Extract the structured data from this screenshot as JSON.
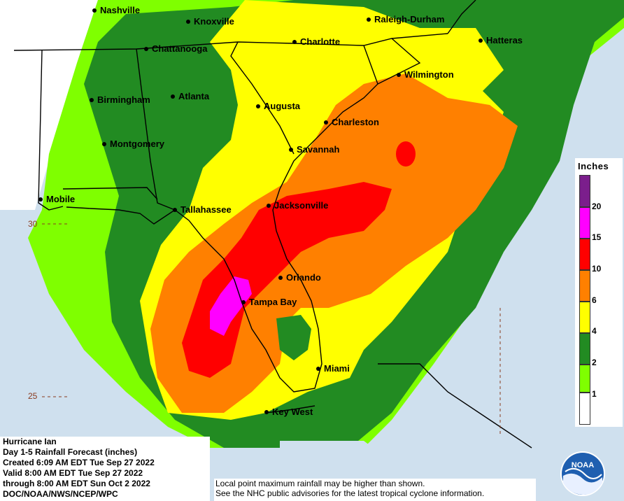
{
  "cities": [
    {
      "id": "nashville",
      "name": "Nashville"
    },
    {
      "id": "knoxville",
      "name": "Knoxville"
    },
    {
      "id": "raleigh",
      "name": "Raleigh-Durham"
    },
    {
      "id": "hatteras",
      "name": "Hatteras"
    },
    {
      "id": "chattanooga",
      "name": "Chattanooga"
    },
    {
      "id": "charlotte",
      "name": "Charlotte"
    },
    {
      "id": "wilmington",
      "name": "Wilmington"
    },
    {
      "id": "birmingham",
      "name": "Birmingham"
    },
    {
      "id": "atlanta",
      "name": "Atlanta"
    },
    {
      "id": "augusta",
      "name": "Augusta"
    },
    {
      "id": "charleston",
      "name": "Charleston"
    },
    {
      "id": "montgomery",
      "name": "Montgomery"
    },
    {
      "id": "savannah",
      "name": "Savannah"
    },
    {
      "id": "mobile",
      "name": "Mobile"
    },
    {
      "id": "tallahassee",
      "name": "Tallahassee"
    },
    {
      "id": "jacksonville",
      "name": "Jacksonville"
    },
    {
      "id": "orlando",
      "name": "Orlando"
    },
    {
      "id": "tampa",
      "name": "Tampa Bay"
    },
    {
      "id": "miami",
      "name": "Miami"
    },
    {
      "id": "keywest",
      "name": "Key West"
    }
  ],
  "latitude_labels": [
    "30",
    "25"
  ],
  "legend": {
    "title": "Inches",
    "levels": [
      {
        "label": "20",
        "color": "#7b1e8c"
      },
      {
        "label": "15",
        "color": "#ff00ff"
      },
      {
        "label": "10",
        "color": "#ff0000"
      },
      {
        "label": "6",
        "color": "#ff8000"
      },
      {
        "label": "4",
        "color": "#ffff00"
      },
      {
        "label": "2",
        "color": "#228b22"
      },
      {
        "label": "1",
        "color": "#7fff00"
      },
      {
        "label": "",
        "color": "#ffffff"
      }
    ]
  },
  "info": {
    "line1": "Hurricane Ian",
    "line2": "Day 1-5 Rainfall Forecast (inches)",
    "line3": "Created 6:09 AM EDT Tue Sep 27 2022",
    "line4": "Valid 8:00 AM EDT Tue Sep 27 2022",
    "line5": "through 8:00 AM EDT Sun Oct 2 2022",
    "line6": "DOC/NOAA/NWS/NCEP/WPC"
  },
  "disclaimer": {
    "line1": "Local point maximum rainfall may be higher than shown.",
    "line2": "See the NHC public advisories for the latest tropical cyclone information."
  },
  "logo": {
    "text": "NOAA"
  }
}
